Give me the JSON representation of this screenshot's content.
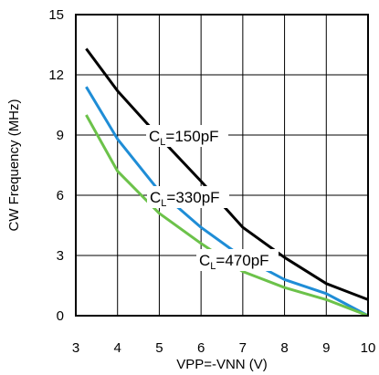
{
  "chart_data": {
    "type": "line",
    "xlabel": "VPP=-VNN (V)",
    "ylabel": "CW Frequency (MHz)",
    "xlim": [
      3,
      10
    ],
    "ylim": [
      0,
      15
    ],
    "xticks": [
      3,
      4,
      5,
      6,
      7,
      8,
      9,
      10
    ],
    "yticks": [
      0,
      3,
      6,
      9,
      12,
      15
    ],
    "grid": true,
    "series": [
      {
        "name": "CL=150pF",
        "label_main": "C",
        "label_sub": "L",
        "label_rest": "=150pF",
        "color": "#000000",
        "x": [
          3.25,
          4,
          5,
          6,
          7,
          8,
          9,
          10
        ],
        "y": [
          13.3,
          11.2,
          8.9,
          6.7,
          4.4,
          2.9,
          1.6,
          0.8
        ]
      },
      {
        "name": "CL=330pF",
        "label_main": "C",
        "label_sub": "L",
        "label_rest": "=330pF",
        "color": "#1f8dd6",
        "x": [
          3.25,
          4,
          5,
          6,
          7,
          8,
          9,
          10
        ],
        "y": [
          11.4,
          8.8,
          6.2,
          4.4,
          2.9,
          1.8,
          1.1,
          0.0
        ]
      },
      {
        "name": "CL=470pF",
        "label_main": "C",
        "label_sub": "L",
        "label_rest": "=470pF",
        "color": "#6cc24a",
        "x": [
          3.25,
          4,
          5,
          6,
          7,
          8,
          9,
          10
        ],
        "y": [
          10.0,
          7.2,
          5.1,
          3.6,
          2.2,
          1.4,
          0.8,
          0.0
        ]
      }
    ]
  }
}
